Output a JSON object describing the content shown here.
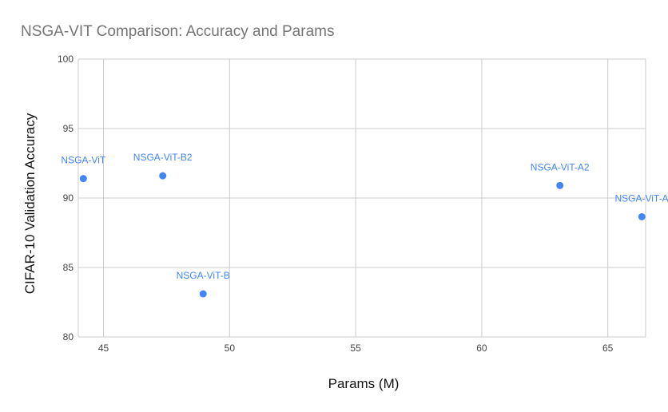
{
  "chart_data": {
    "type": "scatter",
    "title": "NSGA-VIT Comparison: Accuracy and Params",
    "xlabel": "Params (M)",
    "ylabel": "CIFAR-10  Validation Accuracy",
    "xlim": [
      44,
      66.5
    ],
    "ylim": [
      80,
      100
    ],
    "xticks": [
      45,
      50,
      55,
      60,
      65
    ],
    "yticks": [
      80,
      85,
      90,
      95,
      100
    ],
    "grid": true,
    "point_color": "#4285f4",
    "label_color": "#4285f4",
    "points": [
      {
        "label": "NSGA-ViT",
        "x": 44.2,
        "y": 91.4
      },
      {
        "label": "NSGA-ViT-B2",
        "x": 47.35,
        "y": 91.6
      },
      {
        "label": "NSGA-ViT-B",
        "x": 48.95,
        "y": 83.1
      },
      {
        "label": "NSGA-ViT-A2",
        "x": 63.1,
        "y": 90.9
      },
      {
        "label": "NSGA-ViT-A",
        "x": 66.35,
        "y": 88.65
      }
    ]
  }
}
